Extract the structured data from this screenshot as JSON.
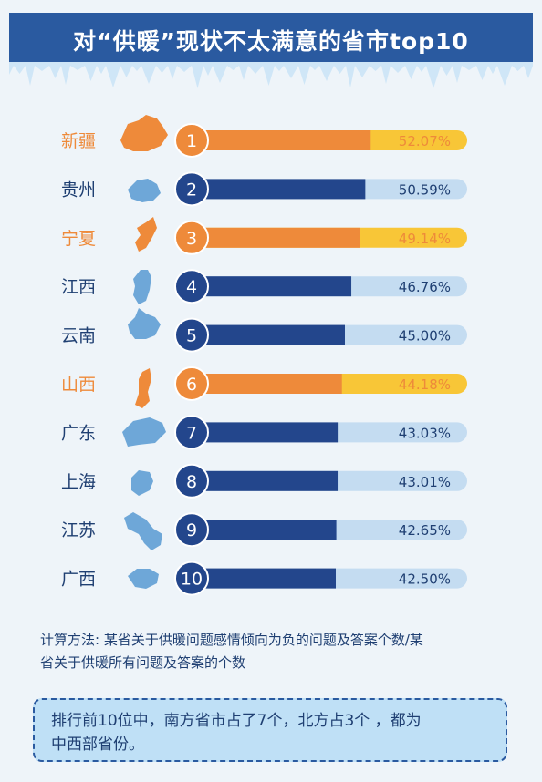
{
  "header": {
    "title": "对“供暖”现状不太满意的省市top10"
  },
  "colors": {
    "header_bg": "#2a5aa0",
    "highlight_fill": "#ee8a3a",
    "highlight_track": "#f8c637",
    "highlight_text": "#ee8a3a",
    "normal_fill": "#23468c",
    "normal_track": "#c4dcf1",
    "normal_text": "#1f3f72",
    "map_highlight": "#ee8a3a",
    "map_normal": "#6ea7d8"
  },
  "chart_data": {
    "type": "bar",
    "title": "对“供暖”现状不太满意的省市top10",
    "unit": "%",
    "xlim": [
      0,
      100
    ],
    "categories": [
      "新疆",
      "贵州",
      "宁夏",
      "江西",
      "云南",
      "山西",
      "广东",
      "上海",
      "江苏",
      "广西"
    ],
    "ranks": [
      "1",
      "2",
      "3",
      "4",
      "5",
      "6",
      "7",
      "8",
      "9",
      "10"
    ],
    "values": [
      52.07,
      50.59,
      49.14,
      46.76,
      45.0,
      44.18,
      43.03,
      43.01,
      42.65,
      42.5
    ],
    "value_labels": [
      "52.07%",
      "50.59%",
      "49.14%",
      "46.76%",
      "45.00%",
      "44.18%",
      "43.03%",
      "43.01%",
      "42.65%",
      "42.50%"
    ],
    "highlighted": [
      true,
      false,
      true,
      false,
      false,
      true,
      false,
      false,
      false,
      false
    ],
    "map_icons": [
      "xinjiang-map-icon",
      "guizhou-map-icon",
      "ningxia-map-icon",
      "jiangxi-map-icon",
      "yunnan-map-icon",
      "shanxi-map-icon",
      "guangdong-map-icon",
      "shanghai-map-icon",
      "jiangsu-map-icon",
      "guangxi-map-icon"
    ]
  },
  "note": {
    "lines": [
      "计算方法: 某省关于供暖问题感情倾向为负的问题及答案个数/某",
      "省关于供暖所有问题及答案的个数"
    ]
  },
  "summary": {
    "lines": [
      "排行前10位中，南方省市占了7个，北方占3个 ，都为",
      "中西部省份。"
    ]
  }
}
